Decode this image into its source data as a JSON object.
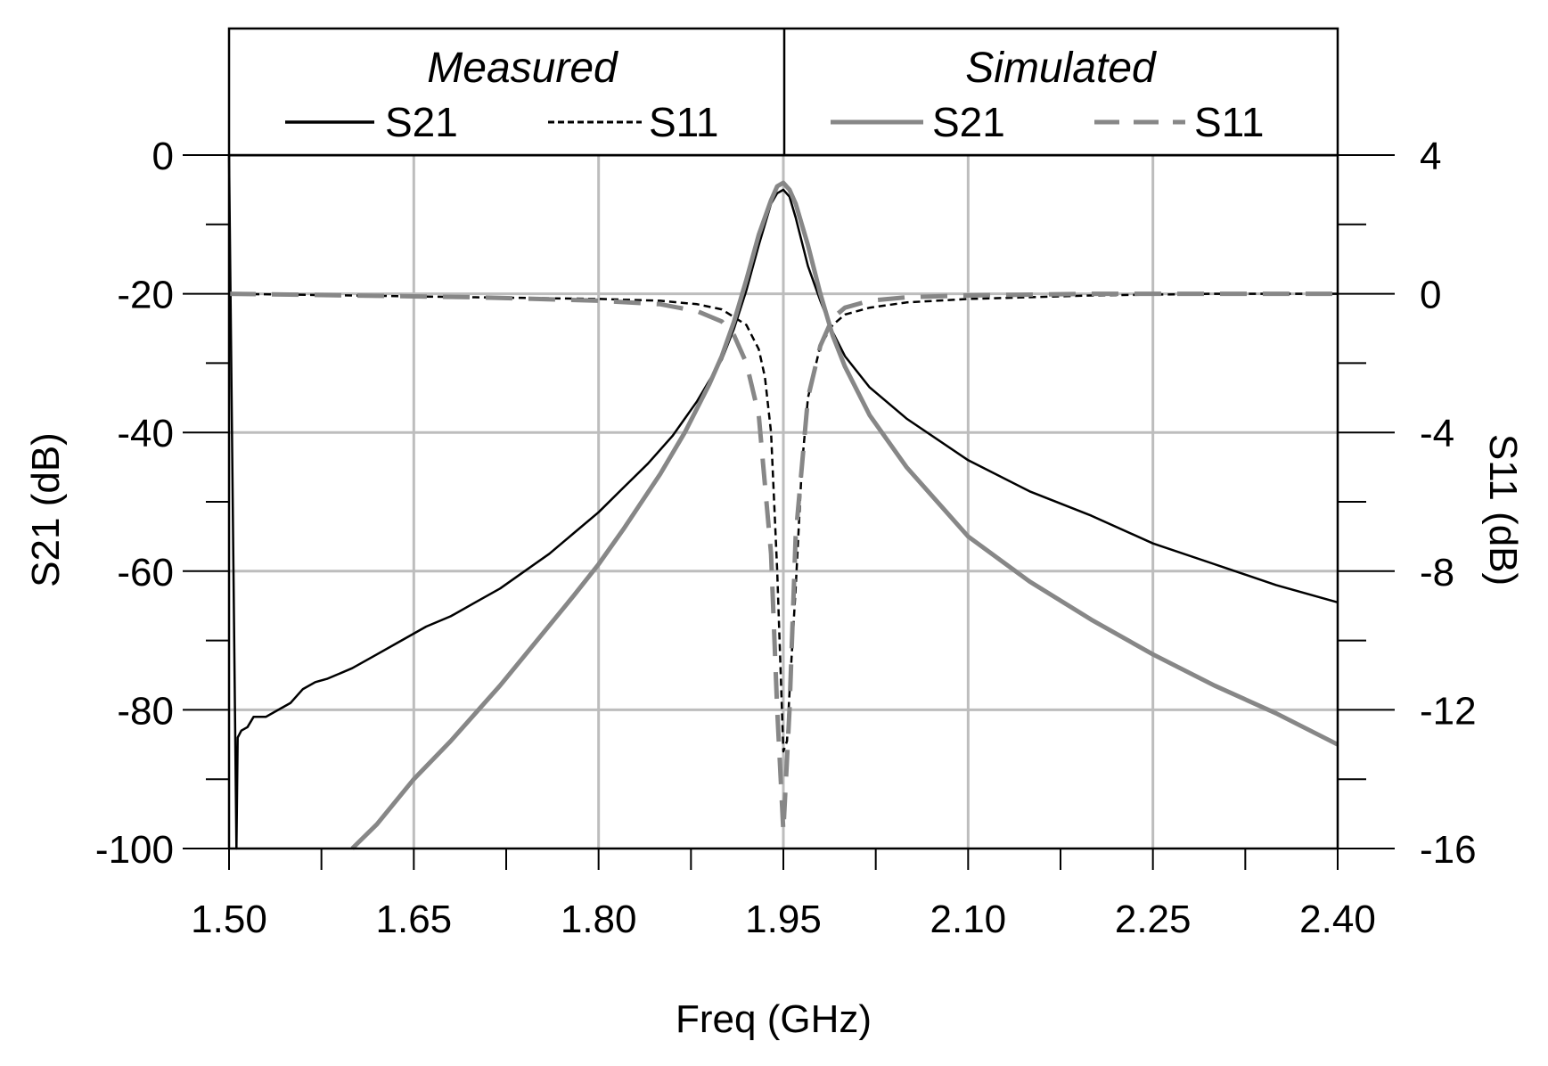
{
  "chart_data": {
    "type": "line",
    "title": "",
    "xlabel": "Freq (GHz)",
    "ylabel_left": "S21 (dB)",
    "ylabel_right": "S11 (dB)",
    "xlim": [
      1.5,
      2.4
    ],
    "ylim_left": [
      -100,
      0
    ],
    "ylim_right": [
      -16,
      4
    ],
    "x_ticks": [
      "1.50",
      "1.65",
      "1.80",
      "1.95",
      "2.10",
      "2.25",
      "2.40"
    ],
    "y_ticks_left": [
      "0",
      "-20",
      "-40",
      "-60",
      "-80",
      "-100"
    ],
    "y_ticks_right": [
      "4",
      "0",
      "-4",
      "-8",
      "-12",
      "-16"
    ],
    "grid": true,
    "legend": {
      "placement": "top",
      "groups": [
        {
          "header": "Measured",
          "entries": [
            "S21",
            "S11"
          ]
        },
        {
          "header": "Simulated",
          "entries": [
            "S21",
            "S11"
          ]
        }
      ]
    },
    "series": [
      {
        "name": "Measured S21",
        "group": "Measured",
        "axis": "left",
        "color": "#000000",
        "dash": "solid",
        "x": [
          1.5,
          1.506,
          1.507,
          1.51,
          1.515,
          1.52,
          1.53,
          1.54,
          1.55,
          1.56,
          1.57,
          1.58,
          1.6,
          1.62,
          1.64,
          1.66,
          1.68,
          1.7,
          1.72,
          1.74,
          1.76,
          1.78,
          1.8,
          1.82,
          1.84,
          1.86,
          1.88,
          1.9,
          1.91,
          1.92,
          1.93,
          1.94,
          1.945,
          1.95,
          1.955,
          1.96,
          1.97,
          1.98,
          1.99,
          2.0,
          2.02,
          2.05,
          2.1,
          2.15,
          2.2,
          2.25,
          2.3,
          2.35,
          2.4
        ],
        "y": [
          0,
          -100,
          -84,
          -83,
          -82.5,
          -81,
          -81,
          -80,
          -79,
          -77,
          -76,
          -75.5,
          -74,
          -72,
          -70,
          -68,
          -66.5,
          -64.5,
          -62.5,
          -60,
          -57.5,
          -54.5,
          -51.5,
          -48,
          -44.5,
          -40.5,
          -35.5,
          -29.5,
          -25,
          -19.5,
          -13,
          -7,
          -5.5,
          -5,
          -6,
          -9,
          -16,
          -21,
          -25.5,
          -29,
          -33.5,
          -38,
          -44,
          -48.5,
          -52,
          -56,
          -59,
          -62,
          -64.5
        ]
      },
      {
        "name": "Measured S11",
        "group": "Measured",
        "axis": "right",
        "color": "#000000",
        "dash": "short",
        "x": [
          1.5,
          1.6,
          1.7,
          1.8,
          1.85,
          1.88,
          1.9,
          1.92,
          1.93,
          1.935,
          1.94,
          1.945,
          1.95,
          1.953,
          1.955,
          1.96,
          1.965,
          1.97,
          1.98,
          1.99,
          2.0,
          2.02,
          2.05,
          2.1,
          2.2,
          2.3,
          2.4
        ],
        "y": [
          0,
          -0.05,
          -0.1,
          -0.15,
          -0.2,
          -0.3,
          -0.45,
          -0.9,
          -1.6,
          -2.4,
          -4.0,
          -8.0,
          -13.2,
          -12.9,
          -11.5,
          -8.5,
          -5.0,
          -3.0,
          -1.5,
          -0.9,
          -0.6,
          -0.4,
          -0.25,
          -0.15,
          -0.05,
          0,
          0
        ]
      },
      {
        "name": "Simulated S21",
        "group": "Simulated",
        "axis": "left",
        "color": "#878787",
        "dash": "solid",
        "x": [
          1.6,
          1.62,
          1.65,
          1.68,
          1.7,
          1.72,
          1.75,
          1.78,
          1.8,
          1.82,
          1.85,
          1.87,
          1.89,
          1.9,
          1.91,
          1.92,
          1.93,
          1.94,
          1.945,
          1.95,
          1.955,
          1.96,
          1.97,
          1.98,
          1.99,
          2.0,
          2.02,
          2.05,
          2.08,
          2.1,
          2.15,
          2.2,
          2.25,
          2.3,
          2.35,
          2.4
        ],
        "y": [
          -100,
          -96.5,
          -90,
          -84.5,
          -80.5,
          -76.5,
          -70,
          -63.5,
          -59,
          -54,
          -46,
          -40,
          -33,
          -29,
          -24,
          -18,
          -11.5,
          -6.5,
          -4.5,
          -4,
          -5,
          -7,
          -13,
          -20,
          -26,
          -30.5,
          -37.5,
          -45,
          -51,
          -55,
          -61.5,
          -67,
          -72,
          -76.5,
          -80.5,
          -85
        ]
      },
      {
        "name": "Simulated S11",
        "group": "Simulated",
        "axis": "right",
        "color": "#878787",
        "dash": "long",
        "x": [
          1.5,
          1.6,
          1.7,
          1.8,
          1.85,
          1.88,
          1.9,
          1.91,
          1.92,
          1.93,
          1.94,
          1.945,
          1.95,
          1.955,
          1.96,
          1.97,
          1.98,
          1.99,
          2.0,
          2.02,
          2.05,
          2.1,
          2.2,
          2.3,
          2.4
        ],
        "y": [
          0,
          -0.05,
          -0.1,
          -0.2,
          -0.3,
          -0.5,
          -0.8,
          -1.2,
          -2.0,
          -3.5,
          -7.5,
          -12.0,
          -15.5,
          -12.0,
          -7.0,
          -3.0,
          -1.5,
          -0.7,
          -0.4,
          -0.2,
          -0.1,
          -0.05,
          0,
          0,
          0
        ]
      }
    ]
  }
}
